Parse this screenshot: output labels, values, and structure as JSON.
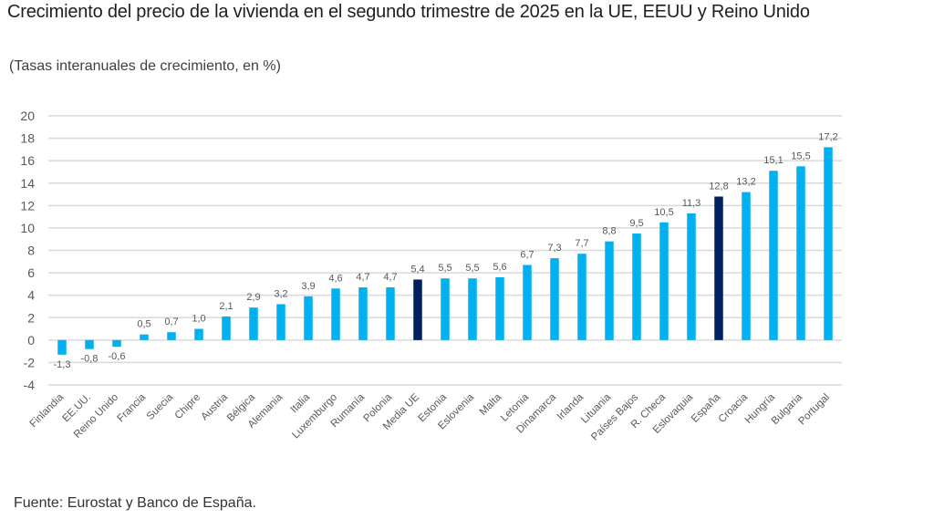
{
  "header": {
    "title": "Crecimiento del precio de la vivienda en el segundo trimestre de 2025 en la UE, EEUU y Reino Unido",
    "subtitle": "(Tasas interanuales de crecimiento, en %)"
  },
  "footer": {
    "source": "Fuente: Eurostat y Banco de España."
  },
  "colors": {
    "bar": "#00b0f0",
    "highlight": "#002060",
    "grid": "#d9d9d9",
    "text": "#595959"
  },
  "chart_data": {
    "type": "bar",
    "title": "Crecimiento del precio de la vivienda en el segundo trimestre de 2025 en la UE, EEUU y Reino Unido",
    "subtitle": "(Tasas interanuales de crecimiento, en %)",
    "xlabel": "",
    "ylabel": "",
    "ylim": [
      -4,
      20
    ],
    "yticks": [
      20,
      18,
      16,
      14,
      12,
      10,
      8,
      6,
      4,
      2,
      0,
      -2,
      -4
    ],
    "ytick_labels": [
      "20",
      "18",
      "16",
      "14",
      "12",
      "10",
      "8",
      "6",
      "4",
      "2",
      "0",
      "-2",
      "-4"
    ],
    "grid": true,
    "legend": "none",
    "categories": [
      "Finlandia",
      "EE.UU.",
      "Reino Unido",
      "Francia",
      "Suecia",
      "Chipre",
      "Austria",
      "Bélgica",
      "Alemania",
      "Italia",
      "Luxemburgo",
      "Rumanía",
      "Polonia",
      "Media UE",
      "Estonia",
      "Eslovenia",
      "Malta",
      "Letonia",
      "Dinamarca",
      "Irlanda",
      "Lituania",
      "Países Bajos",
      "R. Checa",
      "Eslovaquia",
      "España",
      "Croacia",
      "Hungría",
      "Bulgaria",
      "Portugal"
    ],
    "values": [
      -1.3,
      -0.8,
      -0.6,
      0.5,
      0.7,
      1.0,
      2.1,
      2.9,
      3.2,
      3.9,
      4.6,
      4.7,
      4.7,
      5.4,
      5.5,
      5.5,
      5.6,
      6.7,
      7.3,
      7.7,
      8.8,
      9.5,
      10.5,
      11.3,
      12.8,
      13.2,
      15.1,
      15.5,
      17.2
    ],
    "data_labels": [
      "-1,3",
      "-0,8",
      "-0,6",
      "0,5",
      "0,7",
      "1,0",
      "2,1",
      "2,9",
      "3,2",
      "3,9",
      "4,6",
      "4,7",
      "4,7",
      "5,4",
      "5,5",
      "5,5",
      "5,6",
      "6,7",
      "7,3",
      "7,7",
      "8,8",
      "9,5",
      "10,5",
      "11,3",
      "12,8",
      "13,2",
      "15,1",
      "15,5",
      "17,2"
    ],
    "highlighted": [
      "Media UE",
      "España"
    ]
  }
}
